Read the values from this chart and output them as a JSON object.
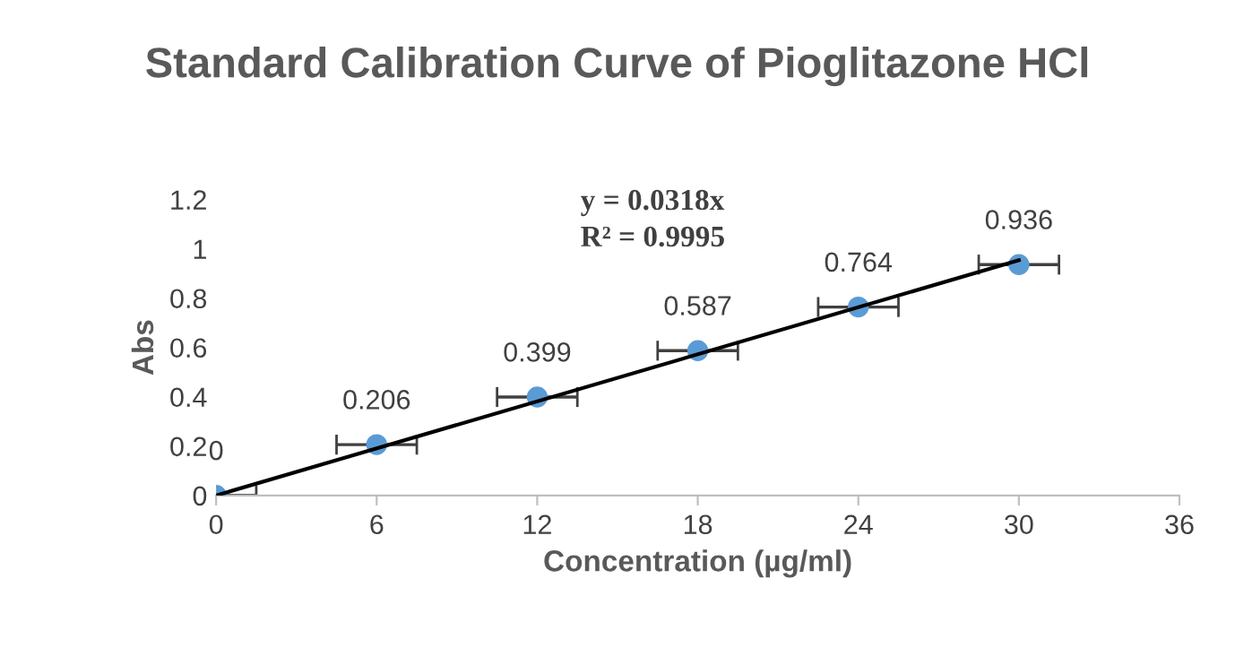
{
  "chart_data": {
    "type": "scatter",
    "title": "Standard Calibration Curve of Pioglitazone HCl",
    "xlabel": "Concentration (µg/ml)",
    "ylabel": "Abs",
    "x": [
      0,
      6,
      12,
      18,
      24,
      30
    ],
    "series": [
      {
        "color": "#5b9bd5",
        "values": [
          0,
          0.206,
          0.399,
          0.587,
          0.764,
          0.936
        ],
        "xerrors": [
          1.5,
          1.5,
          1.5,
          1.5,
          1.5,
          1.5
        ],
        "data_labels": true,
        "marker": "circle"
      },
      {
        "type": "line",
        "color": "#000000",
        "x": [
          0,
          30
        ],
        "values": [
          0,
          0.954
        ],
        "marker": "none",
        "line_style": "solid"
      }
    ],
    "annotations": [
      "y = 0.0318x",
      "R² = 0.9995"
    ],
    "xlim": [
      0,
      36
    ],
    "xticks": [
      0,
      6,
      12,
      18,
      24,
      30,
      36
    ],
    "ylim": [
      0,
      1.2
    ],
    "yticks": [
      0,
      0.2,
      0.4,
      0.6,
      0.8,
      1,
      1.2
    ],
    "grid": false,
    "legend": false
  }
}
